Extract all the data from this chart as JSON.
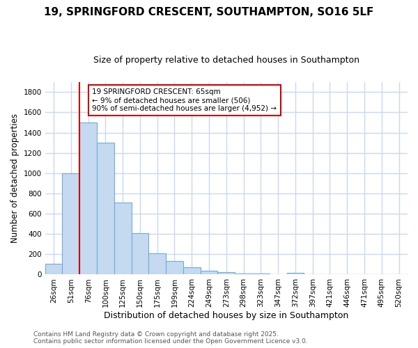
{
  "title": "19, SPRINGFORD CRESCENT, SOUTHAMPTON, SO16 5LF",
  "subtitle": "Size of property relative to detached houses in Southampton",
  "xlabel": "Distribution of detached houses by size in Southampton",
  "ylabel": "Number of detached properties",
  "categories": [
    "26sqm",
    "51sqm",
    "76sqm",
    "100sqm",
    "125sqm",
    "150sqm",
    "175sqm",
    "199sqm",
    "224sqm",
    "249sqm",
    "273sqm",
    "298sqm",
    "323sqm",
    "347sqm",
    "372sqm",
    "397sqm",
    "421sqm",
    "446sqm",
    "471sqm",
    "495sqm",
    "520sqm"
  ],
  "values": [
    105,
    1000,
    1500,
    1300,
    710,
    410,
    210,
    135,
    75,
    35,
    25,
    10,
    10,
    0,
    15,
    0,
    0,
    0,
    0,
    0,
    0
  ],
  "bar_color": "#c5d9f1",
  "bar_edge_color": "#6baed6",
  "vline_color": "#cc0000",
  "annotation_text": "19 SPRINGFORD CRESCENT: 65sqm\n← 9% of detached houses are smaller (506)\n90% of semi-detached houses are larger (4,952) →",
  "annotation_box_color": "#ffffff",
  "annotation_box_edge": "#cc0000",
  "ylim": [
    0,
    1900
  ],
  "yticks": [
    0,
    200,
    400,
    600,
    800,
    1000,
    1200,
    1400,
    1600,
    1800
  ],
  "bg_color": "#ffffff",
  "grid_color": "#c8d8f0",
  "footer": "Contains HM Land Registry data © Crown copyright and database right 2025.\nContains public sector information licensed under the Open Government Licence v3.0.",
  "title_fontsize": 11,
  "subtitle_fontsize": 9,
  "xlabel_fontsize": 9,
  "ylabel_fontsize": 8.5,
  "tick_fontsize": 7.5,
  "annotation_fontsize": 7.5,
  "footer_fontsize": 6.5
}
